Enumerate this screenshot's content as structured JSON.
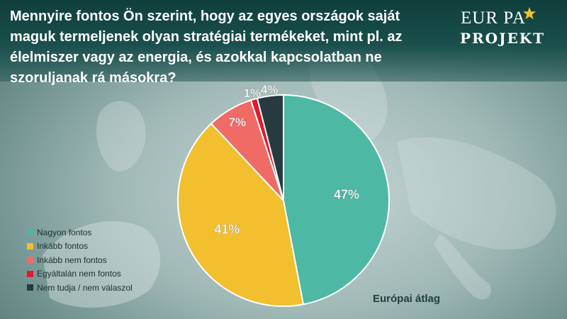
{
  "question": "Mennyire fontos Ön szerint, hogy az egyes országok saját maguk termeljenek olyan stratégiai termékeket, mint pl. az élelmiszer vagy az energia, és azokkal kapcsolatban ne szoruljanak rá másokra?",
  "logo": {
    "line1": "EUR PA",
    "line2": "PROJEKT",
    "star_icon": "star-icon"
  },
  "footer_note": "Európai átlag",
  "colors": {
    "background": "#8fb0ad",
    "header": "#14443f"
  },
  "chart_data": {
    "type": "pie",
    "title": "",
    "start_angle_deg": 0,
    "direction": "clockwise",
    "legend_placement": "bottom-left",
    "slices": [
      {
        "label": "Nagyon fontos",
        "value": 47,
        "display": "47%",
        "color": "#4db8a3",
        "text_color": "#ffffff"
      },
      {
        "label": "Inkább fontos",
        "value": 41,
        "display": "41%",
        "color": "#f2bf2e",
        "text_color": "#ffffff"
      },
      {
        "label": "Inkább nem fontos",
        "value": 7,
        "display": "7%",
        "color": "#f06b66",
        "text_color": "#ffffff"
      },
      {
        "label": "Egyáltalán nem fontos",
        "value": 1,
        "display": "1%",
        "color": "#e0192d",
        "text_color": "#ffffff"
      },
      {
        "label": "Nem tudja / nem válaszol",
        "value": 4,
        "display": "4%",
        "color": "#263a40",
        "text_color": "#ffffff"
      }
    ]
  }
}
